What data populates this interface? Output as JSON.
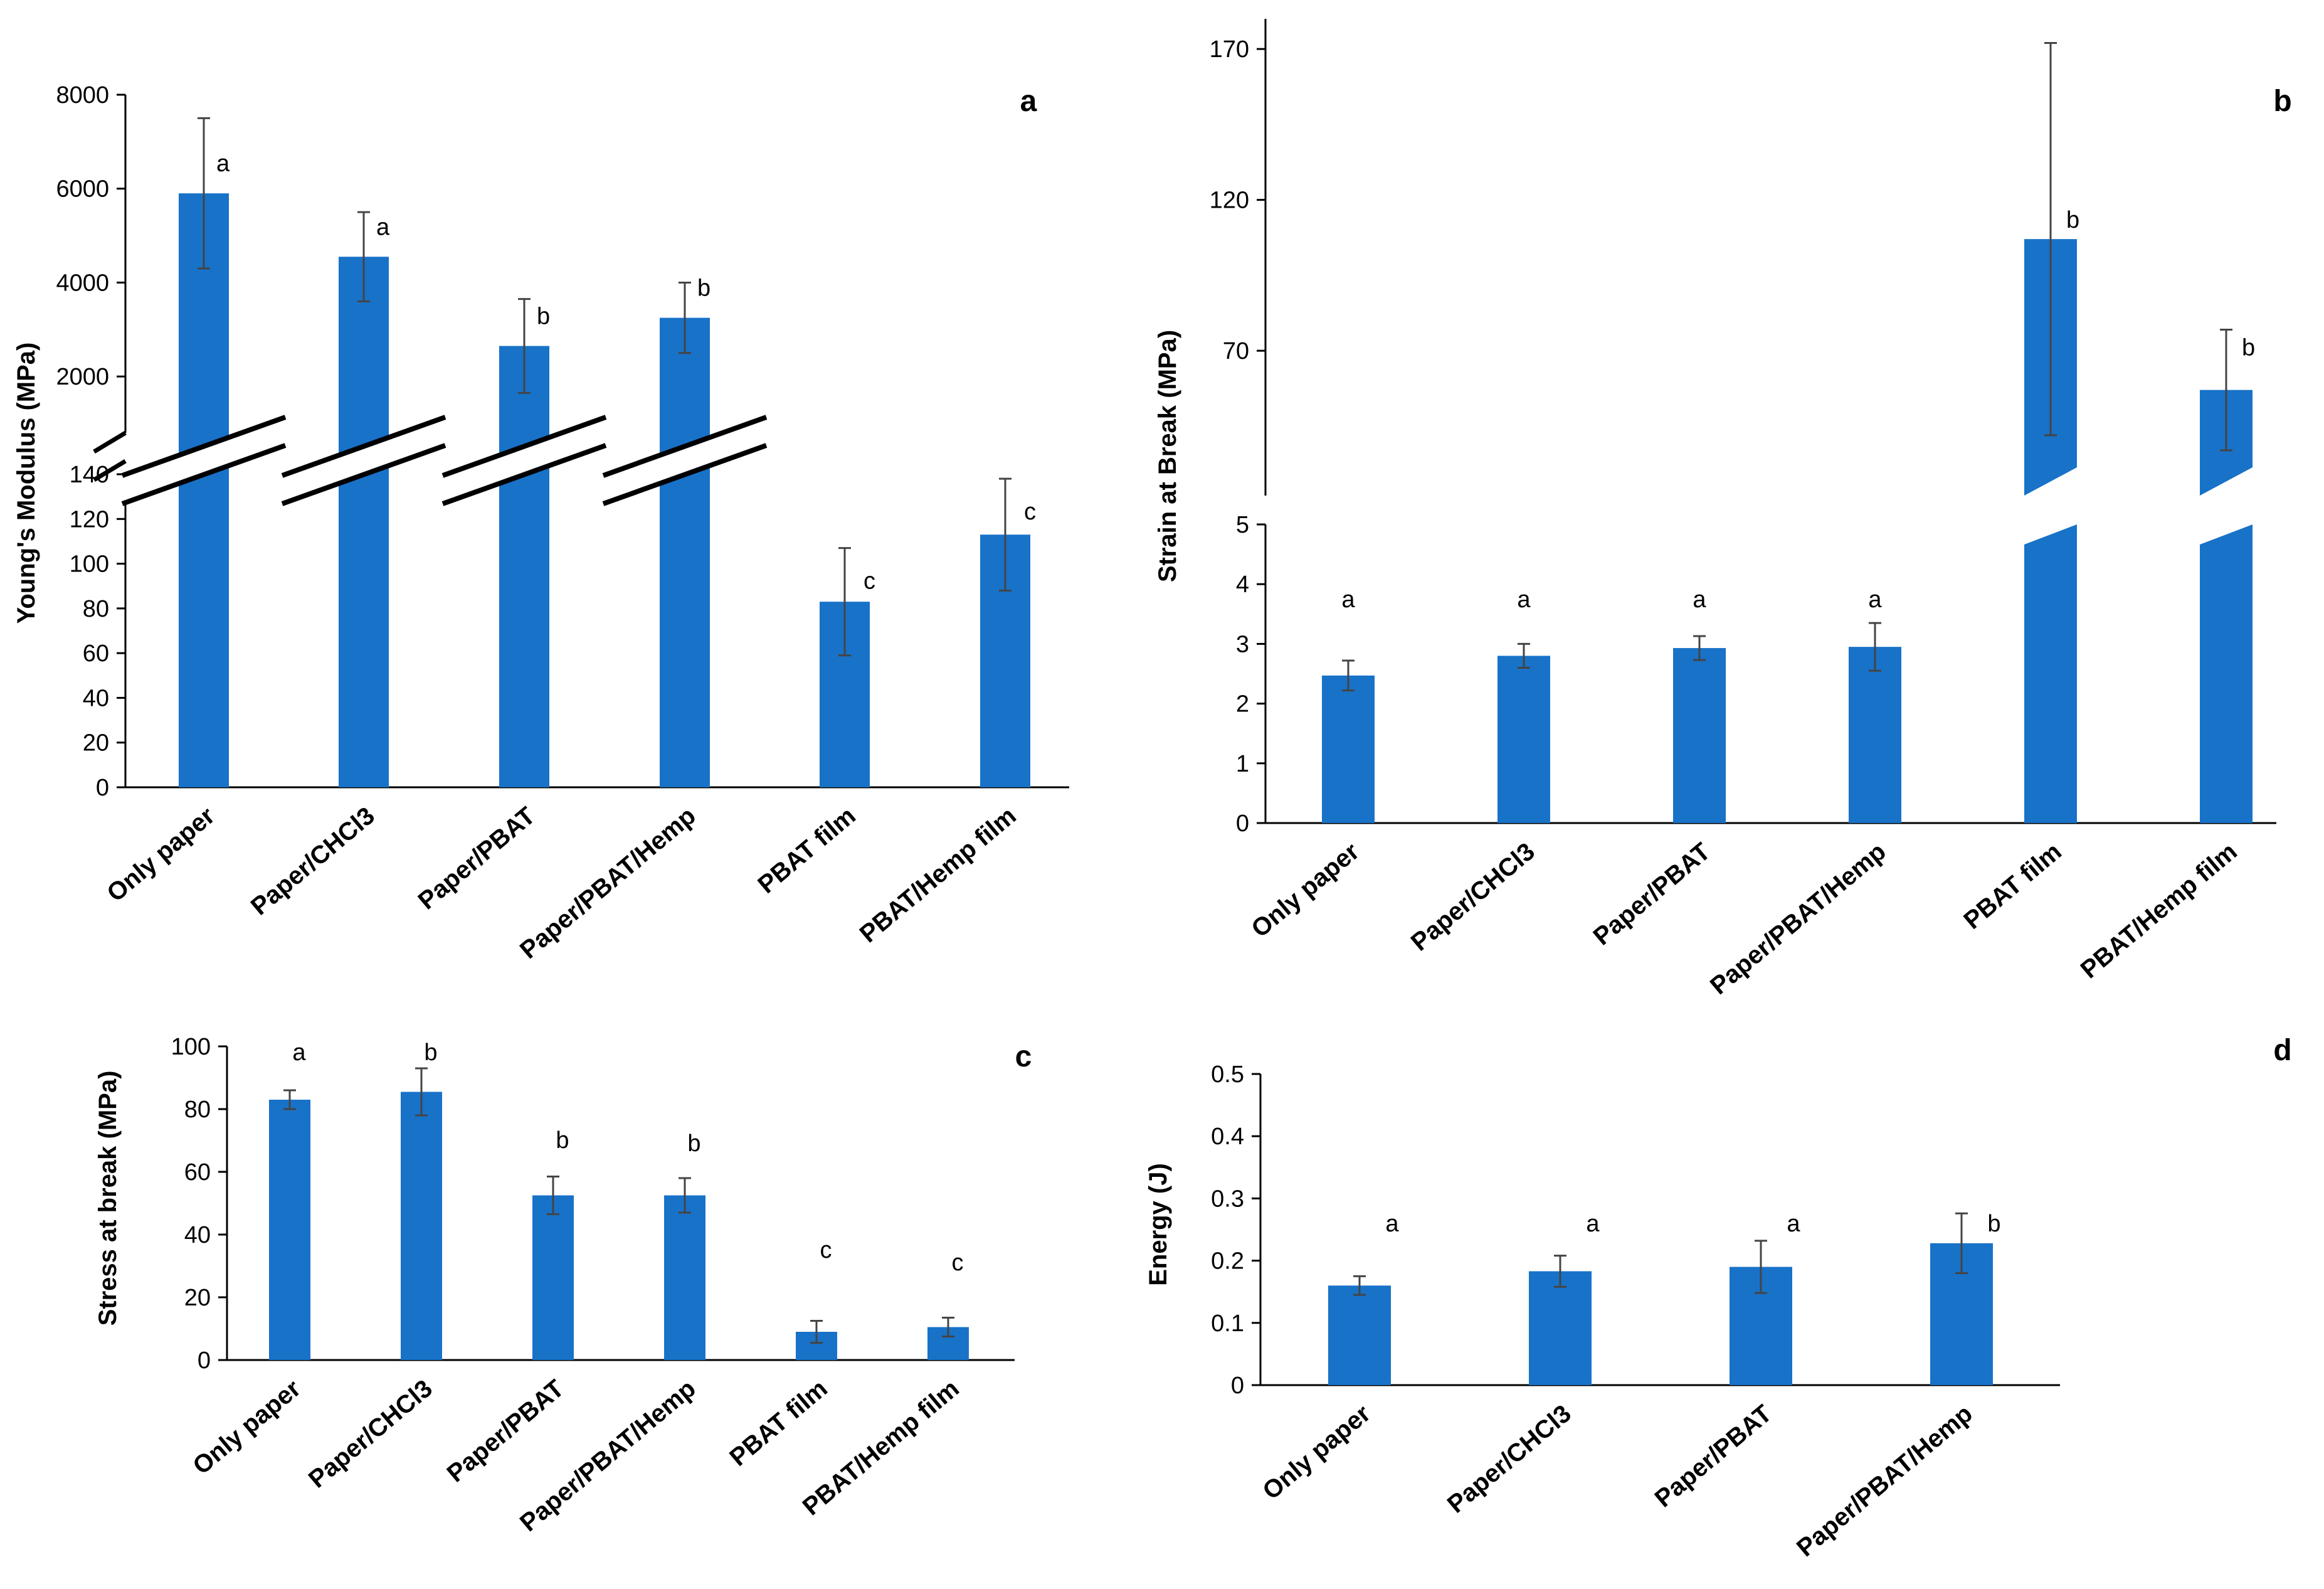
{
  "figure": {
    "bar_color": "#1872C8",
    "axis_color": "#000000",
    "error_bar_color": "#444444"
  },
  "chart_data": [
    {
      "panel": "a",
      "type": "bar",
      "broken_axis": true,
      "ylabel": "Young's Modulus (MPa)",
      "categories": [
        "Only paper",
        "Paper/CHCl3",
        "Paper/PBAT",
        "Paper/PBAT/Hemp",
        "PBAT film",
        "PBAT/Hemp film"
      ],
      "values": [
        5900,
        4550,
        2650,
        3250,
        83,
        113
      ],
      "errors": [
        1600,
        950,
        1000,
        750,
        24,
        25
      ],
      "letters": [
        "a",
        "a",
        "b",
        "b",
        "c",
        "c"
      ],
      "lower_segment": {
        "ylim": [
          0,
          140
        ],
        "ticks": [
          "0",
          "20",
          "40",
          "60",
          "80",
          "100",
          "120",
          "140"
        ]
      },
      "upper_segment": {
        "ylim": [
          800,
          8000
        ],
        "ticks": [
          "2000",
          "4000",
          "6000",
          "8000"
        ]
      }
    },
    {
      "panel": "b",
      "type": "bar",
      "broken_axis": true,
      "ylabel": "Strain at Break (MPa)",
      "categories": [
        "Only paper",
        "Paper/CHCl3",
        "Paper/PBAT",
        "Paper/PBAT/Hemp",
        "PBAT film",
        "PBAT/Hemp film"
      ],
      "values": [
        2.47,
        2.8,
        2.93,
        2.95,
        107,
        57
      ],
      "errors": [
        0.25,
        0.2,
        0.2,
        0.4,
        65,
        20
      ],
      "letters": [
        "a",
        "a",
        "a",
        "a",
        "b",
        "b"
      ],
      "lower_segment": {
        "ylim": [
          0,
          5
        ],
        "ticks": [
          "0",
          "1",
          "2",
          "3",
          "4",
          "5"
        ]
      },
      "upper_segment": {
        "ylim": [
          22,
          180
        ],
        "ticks": [
          "70",
          "120",
          "170"
        ]
      }
    },
    {
      "panel": "c",
      "type": "bar",
      "ylabel": "Stress at break (MPa)",
      "categories": [
        "Only paper",
        "Paper/CHCl3",
        "Paper/PBAT",
        "Paper/PBAT/Hemp",
        "PBAT film",
        "PBAT/Hemp film"
      ],
      "values": [
        83,
        85.5,
        52.5,
        52.5,
        9,
        10.5
      ],
      "errors": [
        3,
        7.5,
        6,
        5.5,
        3.5,
        3
      ],
      "letters": [
        "a",
        "b",
        "b",
        "b",
        "c",
        "c"
      ],
      "ylim": [
        0,
        100
      ],
      "ticks": [
        "0",
        "20",
        "40",
        "60",
        "80",
        "100"
      ]
    },
    {
      "panel": "d",
      "type": "bar",
      "ylabel": "Energy (J)",
      "categories": [
        "Only paper",
        "Paper/CHCl3",
        "Paper/PBAT",
        "Paper/PBAT/Hemp"
      ],
      "values": [
        0.16,
        0.183,
        0.19,
        0.228
      ],
      "errors": [
        0.015,
        0.025,
        0.042,
        0.048
      ],
      "letters": [
        "a",
        "a",
        "a",
        "b"
      ],
      "ylim": [
        0,
        0.5
      ],
      "ticks": [
        "0",
        "0.1",
        "0.2",
        "0.3",
        "0.4",
        "0.5"
      ]
    }
  ]
}
